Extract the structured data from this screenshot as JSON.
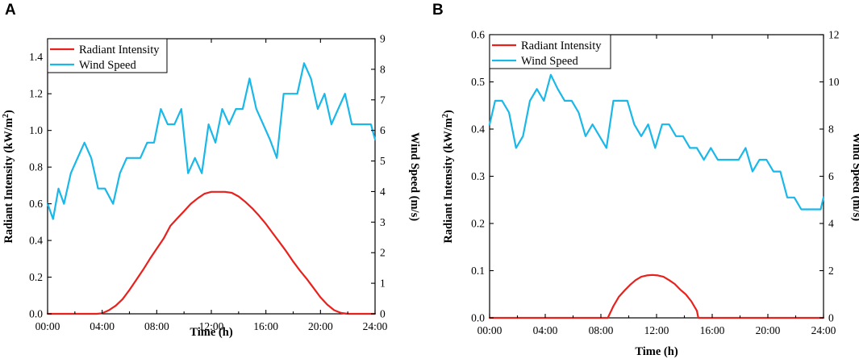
{
  "colors": {
    "radiant": "#e8211c",
    "wind": "#1ab8e8",
    "axis": "#000000"
  },
  "chart_data": [
    {
      "panel_label": "A",
      "type": "line",
      "xlabel": "Time (h)",
      "ylabel_left": "Radiant Intensity (kW/m²)",
      "ylabel_left_base": "Radiant Intensity (kW/m",
      "ylabel_left_sup": "2",
      "ylabel_left_tail": ")",
      "ylabel_right": "Wind Speed (m/s)",
      "xlim": [
        0,
        24
      ],
      "xticks": [
        0,
        4,
        8,
        12,
        16,
        20,
        24
      ],
      "xtick_labels": [
        "00:00",
        "04:00",
        "08:00",
        "12:00",
        "16:00",
        "20:00",
        "24:00"
      ],
      "ylim_left": [
        0,
        1.5
      ],
      "yticks_left": [
        0.0,
        0.2,
        0.4,
        0.6,
        0.8,
        1.0,
        1.2,
        1.4
      ],
      "ytick_labels_left": [
        "0.0",
        "0.2",
        "0.4",
        "0.6",
        "0.8",
        "1.0",
        "1.2",
        "1.4"
      ],
      "ylim_right": [
        0,
        9
      ],
      "yticks_right": [
        0,
        1,
        2,
        3,
        4,
        5,
        6,
        7,
        8,
        9
      ],
      "ytick_labels_right": [
        "0",
        "1",
        "2",
        "3",
        "4",
        "5",
        "6",
        "7",
        "8",
        "9"
      ],
      "legend": [
        "Radiant Intensity",
        "Wind Speed"
      ],
      "series": [
        {
          "name": "Radiant Intensity",
          "axis": "left",
          "color_key": "radiant",
          "x": [
            0,
            3.6,
            4,
            4.5,
            5,
            5.5,
            6,
            6.5,
            7,
            7.5,
            8,
            8.5,
            9,
            9.5,
            10,
            10.5,
            11,
            11.5,
            12,
            12.5,
            13,
            13.5,
            14,
            14.5,
            15,
            15.5,
            16,
            16.5,
            17,
            17.5,
            18,
            18.5,
            19,
            19.5,
            20,
            20.5,
            21,
            21.5,
            22,
            24
          ],
          "y": [
            0,
            0,
            0.003,
            0.02,
            0.045,
            0.08,
            0.13,
            0.185,
            0.24,
            0.3,
            0.355,
            0.41,
            0.48,
            0.52,
            0.56,
            0.6,
            0.63,
            0.655,
            0.665,
            0.665,
            0.665,
            0.66,
            0.64,
            0.61,
            0.575,
            0.535,
            0.49,
            0.44,
            0.39,
            0.34,
            0.285,
            0.235,
            0.19,
            0.14,
            0.09,
            0.05,
            0.02,
            0.005,
            0,
            0
          ]
        },
        {
          "name": "Wind Speed",
          "axis": "right",
          "color_key": "wind",
          "x": [
            0,
            0.4,
            0.8,
            1.2,
            1.7,
            2.2,
            2.7,
            3.2,
            3.7,
            4.2,
            4.8,
            5.3,
            5.8,
            6.3,
            6.8,
            7.3,
            7.8,
            8.3,
            8.8,
            9.3,
            9.8,
            10.3,
            10.8,
            11.3,
            11.8,
            12.3,
            12.8,
            13.3,
            13.8,
            14.3,
            14.8,
            15.3,
            15.8,
            16.3,
            16.8,
            17.3,
            17.8,
            18.3,
            18.8,
            19.3,
            19.8,
            20.3,
            20.8,
            21.3,
            21.8,
            22.3,
            22.8,
            23.3,
            23.7,
            24
          ],
          "y": [
            3.6,
            3.1,
            4.1,
            3.6,
            4.6,
            5.1,
            5.6,
            5.1,
            4.1,
            4.1,
            3.6,
            4.6,
            5.1,
            5.1,
            5.1,
            5.6,
            5.6,
            6.7,
            6.2,
            6.2,
            6.7,
            4.6,
            5.1,
            4.6,
            6.2,
            5.6,
            6.7,
            6.2,
            6.7,
            6.7,
            7.7,
            6.7,
            6.2,
            5.7,
            5.1,
            7.2,
            7.2,
            7.2,
            8.2,
            7.7,
            6.7,
            7.2,
            6.2,
            6.7,
            7.2,
            6.2,
            6.2,
            6.2,
            6.2,
            5.7
          ]
        }
      ]
    },
    {
      "panel_label": "B",
      "type": "line",
      "xlabel": "Time (h)",
      "ylabel_left": "Radiant Intensity (kW/m²)",
      "ylabel_left_base": "Radiant Intensity (kW/m",
      "ylabel_left_sup": "2",
      "ylabel_left_tail": ")",
      "ylabel_right": "Wind Speed (m/s)",
      "xlim": [
        0,
        24
      ],
      "xticks": [
        0,
        4,
        8,
        12,
        16,
        20,
        24
      ],
      "xtick_labels": [
        "00:00",
        "04:00",
        "08:00",
        "12:00",
        "16:00",
        "20:00",
        "24:00"
      ],
      "ylim_left": [
        0,
        0.6
      ],
      "yticks_left": [
        0.0,
        0.1,
        0.2,
        0.3,
        0.4,
        0.5,
        0.6
      ],
      "ytick_labels_left": [
        "0.0",
        "0.1",
        "0.2",
        "0.3",
        "0.4",
        "0.5",
        "0.6"
      ],
      "ylim_right": [
        0,
        12
      ],
      "yticks_right": [
        0,
        2,
        4,
        6,
        8,
        10,
        12
      ],
      "ytick_labels_right": [
        "0",
        "2",
        "4",
        "6",
        "8",
        "10",
        "12"
      ],
      "legend": [
        "Radiant Intensity",
        "Wind Speed"
      ],
      "series": [
        {
          "name": "Radiant Intensity",
          "axis": "left",
          "color_key": "radiant",
          "x": [
            0,
            8.5,
            8.9,
            9.3,
            9.7,
            10.1,
            10.5,
            10.9,
            11.3,
            11.7,
            12.1,
            12.5,
            12.9,
            13.3,
            13.7,
            14.1,
            14.5,
            14.9,
            15.0,
            24
          ],
          "y": [
            0,
            0,
            0.025,
            0.045,
            0.058,
            0.07,
            0.08,
            0.087,
            0.09,
            0.091,
            0.09,
            0.087,
            0.08,
            0.072,
            0.06,
            0.05,
            0.035,
            0.015,
            0,
            0
          ]
        },
        {
          "name": "Wind Speed",
          "axis": "right",
          "color_key": "wind",
          "x": [
            0,
            0.4,
            0.9,
            1.4,
            1.9,
            2.4,
            2.9,
            3.4,
            3.9,
            4.4,
            4.9,
            5.4,
            5.9,
            6.4,
            6.9,
            7.4,
            7.9,
            8.4,
            8.9,
            9.4,
            9.9,
            10.4,
            10.9,
            11.4,
            11.9,
            12.4,
            12.9,
            13.4,
            13.9,
            14.4,
            14.9,
            15.4,
            15.9,
            16.4,
            16.9,
            17.4,
            17.9,
            18.4,
            18.9,
            19.4,
            19.9,
            20.4,
            20.9,
            21.4,
            21.9,
            22.4,
            22.9,
            23.4,
            23.8,
            24
          ],
          "y": [
            8.2,
            9.2,
            9.2,
            8.7,
            7.2,
            7.7,
            9.2,
            9.7,
            9.2,
            10.3,
            9.7,
            9.2,
            9.2,
            8.7,
            7.7,
            8.2,
            7.7,
            7.2,
            9.2,
            9.2,
            9.2,
            8.2,
            7.7,
            8.2,
            7.2,
            8.2,
            8.2,
            7.7,
            7.7,
            7.2,
            7.2,
            6.7,
            7.2,
            6.7,
            6.7,
            6.7,
            6.7,
            7.2,
            6.2,
            6.7,
            6.7,
            6.2,
            6.2,
            5.1,
            5.1,
            4.6,
            4.6,
            4.6,
            4.6,
            5.1
          ]
        }
      ]
    }
  ]
}
